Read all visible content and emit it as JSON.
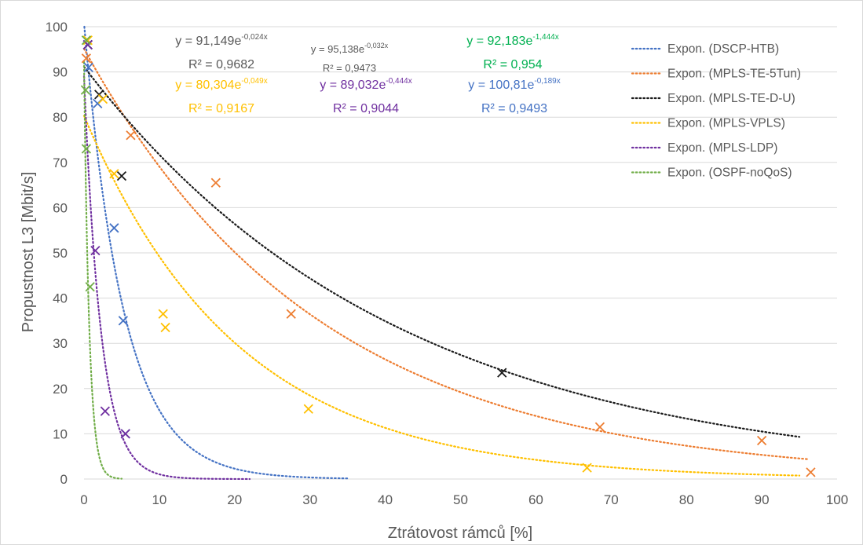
{
  "chart_data": {
    "type": "scatter",
    "xlabel": "Ztrátovost rámců [%]",
    "ylabel": "Propustnost L3 [Mbit/s]",
    "xlim": [
      0,
      100
    ],
    "ylim": [
      0,
      100
    ],
    "x_ticks": [
      0,
      10,
      20,
      30,
      40,
      50,
      60,
      70,
      80,
      90,
      100
    ],
    "y_ticks": [
      0,
      10,
      20,
      30,
      40,
      50,
      60,
      70,
      80,
      90,
      100
    ],
    "grid": "horizontal",
    "legend_position": "top-right",
    "legend": [
      "Expon. (DSCP-HTB)",
      "Expon. (MPLS-TE-5Tun)",
      "Expon. (MPLS-TE-D-U)",
      "Expon. (MPLS-VPLS)",
      "Expon. (MPLS-LDP)",
      "Expon. (OSPF-noQoS)"
    ],
    "series": [
      {
        "key": "dscp",
        "color": "#4472c4",
        "fit": {
          "a": 100.81,
          "b": -0.189,
          "x_max": 35
        },
        "equation": {
          "prefix": "y = 100,81e",
          "exponent": "-0,189x",
          "r2": "R² = 0,9493"
        },
        "points": [
          [
            0.5,
            96
          ],
          [
            0.6,
            91
          ],
          [
            1.8,
            83
          ],
          [
            4,
            55.5
          ],
          [
            5.2,
            35
          ],
          [
            5.5,
            10
          ]
        ]
      },
      {
        "key": "te5tun",
        "color": "#ed7d31",
        "fit": {
          "a": 95.138,
          "b": -0.032,
          "x_max": 96
        },
        "equation": {
          "prefix": "y = 95,138e",
          "exponent": "-0,032x",
          "r2": "R² = 0,9473"
        },
        "points": [
          [
            0.3,
            93
          ],
          [
            6.2,
            76
          ],
          [
            17.5,
            65.5
          ],
          [
            27.5,
            36.5
          ],
          [
            68.5,
            11.5
          ],
          [
            90,
            8.5
          ],
          [
            96.5,
            1.5
          ]
        ]
      },
      {
        "key": "ted-u",
        "color": "#1a1a1a",
        "fit": {
          "a": 91.149,
          "b": -0.024,
          "x_max": 95
        },
        "equation": {
          "prefix": "y = 91,149e",
          "exponent": "-0,024x",
          "r2": "R² = 0,9682"
        },
        "points": [
          [
            0.5,
            96
          ],
          [
            2,
            85
          ],
          [
            5,
            67
          ],
          [
            55.5,
            23.5
          ]
        ]
      },
      {
        "key": "vpls",
        "color": "#ffc000",
        "fit": {
          "a": 80.304,
          "b": -0.049,
          "x_max": 95
        },
        "equation": {
          "prefix": "y = 80,304e",
          "exponent": "-0,049x",
          "r2": "R² = 0,9167"
        },
        "points": [
          [
            0.5,
            97
          ],
          [
            2.5,
            84
          ],
          [
            4,
            67.5
          ],
          [
            10.5,
            36.5
          ],
          [
            10.8,
            33.5
          ],
          [
            29.8,
            15.5
          ],
          [
            66.8,
            2.5
          ]
        ]
      },
      {
        "key": "ldp",
        "color": "#7030a0",
        "fit": {
          "a": 89.032,
          "b": -0.444,
          "x_max": 22
        },
        "equation": {
          "prefix": "y = 89,032e",
          "exponent": "-0,444x",
          "r2": "R² = 0,9044"
        },
        "points": [
          [
            0.5,
            96
          ],
          [
            1.5,
            50.5
          ],
          [
            2.8,
            15
          ],
          [
            5.5,
            10
          ]
        ]
      },
      {
        "key": "ospf",
        "color": "#70ad47",
        "eq_color": "#00b050",
        "fit": {
          "a": 92.183,
          "b": -1.444,
          "x_max": 5
        },
        "equation": {
          "prefix": "y = 92,183e",
          "exponent": "-1,444x",
          "r2": "R² = 0,954"
        },
        "points": [
          [
            0.3,
            97
          ],
          [
            0.2,
            86
          ],
          [
            0.3,
            73
          ],
          [
            0.8,
            42.5
          ]
        ]
      }
    ]
  }
}
